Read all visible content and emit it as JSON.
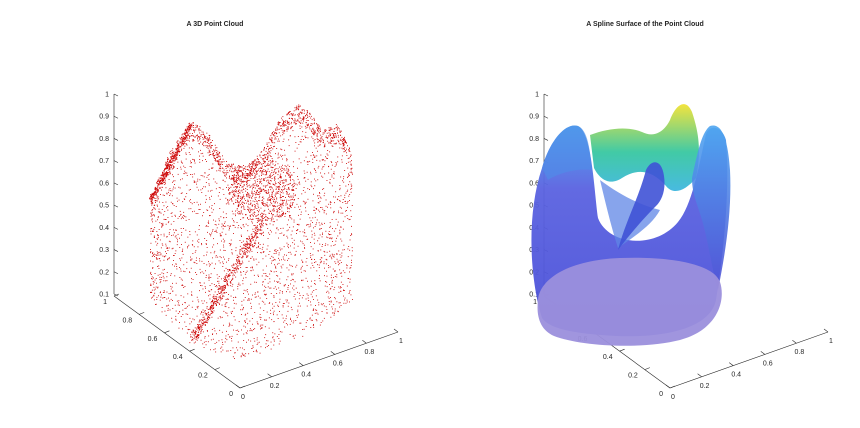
{
  "chart_data": [
    {
      "type": "scatter3d",
      "title": "A 3D Point Cloud",
      "marker_color": "#cc0000",
      "xlim": [
        0,
        1
      ],
      "ylim": [
        0,
        1
      ],
      "zlim": [
        0.1,
        1
      ],
      "x_ticks": [
        "0",
        "0.2",
        "0.4",
        "0.6",
        "0.8",
        "1"
      ],
      "y_ticks": [
        "0",
        "0.2",
        "0.4",
        "0.6",
        "0.8",
        "1"
      ],
      "z_ticks": [
        "0.1",
        "0.2",
        "0.3",
        "0.4",
        "0.5",
        "0.6",
        "0.7",
        "0.8",
        "0.9",
        "1"
      ],
      "grid": false
    },
    {
      "type": "surface3d",
      "title": "A Spline Surface of the Point Cloud",
      "colormap": "parula",
      "colors": {
        "low": "#4a4fd8",
        "mid": "#3ec9a3",
        "high": "#f2e33a",
        "base": "#9b8fdc"
      },
      "xlim": [
        0,
        1
      ],
      "ylim": [
        0,
        1
      ],
      "zlim": [
        0.1,
        1
      ],
      "x_ticks": [
        "0",
        "0.2",
        "0.4",
        "0.6",
        "0.8",
        "1"
      ],
      "y_ticks": [
        "0",
        "0.2",
        "0.4",
        "0.6",
        "0.8",
        "1"
      ],
      "z_ticks": [
        "0.1",
        "0.2",
        "0.3",
        "0.4",
        "0.5",
        "0.6",
        "0.7",
        "0.8",
        "0.9",
        "1"
      ],
      "grid": false
    }
  ]
}
